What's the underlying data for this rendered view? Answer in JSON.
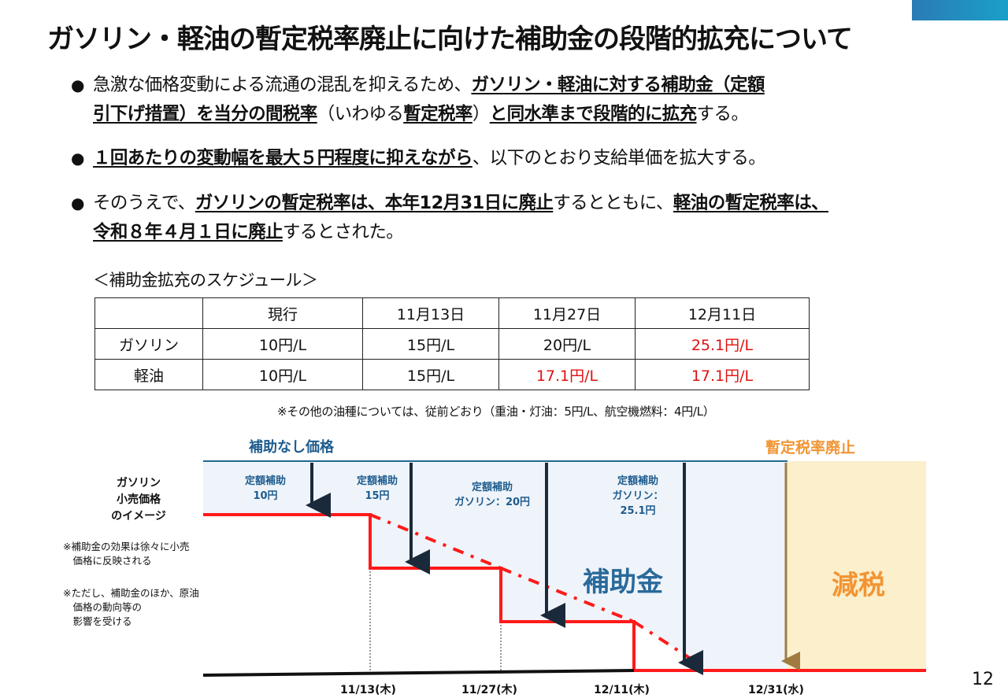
{
  "title": "ガソリン・軽油の暫定税率廃止に向けた補助金の段階的拡充について",
  "bullets": {
    "b1": {
      "l1a": "急激な価格変動による流通の混乱を抑えるため、",
      "l1b": "ガソリン・軽油に対する補助金（定額",
      "l2a": "引下げ措置）を当分の間税率",
      "l2b": "（いわゆる",
      "l2c": "暫定税率",
      "l2d": "）",
      "l2e": "と同水準まで段階的に拡充",
      "l2f": "する。"
    },
    "b2": {
      "a": "１回あたりの変動幅を最大５円程度に抑えながら",
      "b": "、以下のとおり支給単価を拡大する。"
    },
    "b3": {
      "l1a": "そのうえで、",
      "l1b": "ガソリンの暫定税率は、本年12月31日に廃止",
      "l1c": "するとともに、",
      "l1d": "軽油の暫定税率は、",
      "l2a": "令和８年４月１日に廃止",
      "l2b": "するとされた。"
    }
  },
  "schedule": {
    "title": "＜補助金拡充のスケジュール＞",
    "headers": [
      "",
      "現行",
      "11月13日",
      "11月27日",
      "12月11日"
    ],
    "rows": [
      {
        "label": "ガソリン",
        "cells": [
          "10円/L",
          "15円/L",
          "20円/L",
          "25.1円/L"
        ]
      },
      {
        "label": "軽油",
        "cells": [
          "10円/L",
          "15円/L",
          "17.1円/L",
          "17.1円/L"
        ]
      }
    ],
    "note": "※その他の油種については、従前どおり（重油・灯油：5円/L、航空機燃料：4円/L）"
  },
  "diagram": {
    "label_no_subsidy": "補助なし価格",
    "label_abolish": "暫定税率廃止",
    "side_head": [
      "ガソリン",
      "小売価格",
      "のイメージ"
    ],
    "side_note1": [
      "※補助金の効果は徐々に小売",
      "　価格に反映される"
    ],
    "side_note2": [
      "※ただし、補助金のほか、原油",
      "　価格の動向等の",
      "　影響を受ける"
    ],
    "sub1": [
      "定額補助",
      "10円"
    ],
    "sub2": [
      "定額補助",
      "15円"
    ],
    "sub3": [
      "定額補助",
      "ガソリン：20円"
    ],
    "sub4": [
      "定額補助",
      "ガソリン：",
      "25.1円"
    ],
    "label_subsidy": "補助金",
    "label_tax_cut": "減税",
    "dates": [
      "11/13(木)",
      "11/27(木)",
      "12/11(木)",
      "12/31(水)"
    ],
    "colors": {
      "subsidy_fill": "#eef4fa",
      "taxcut_fill": "#fbefcc",
      "price_line": "#ff1a1a",
      "arrow": "#1b2a3a",
      "abolish_arrow": "#a07a40"
    }
  },
  "page_number": "12"
}
